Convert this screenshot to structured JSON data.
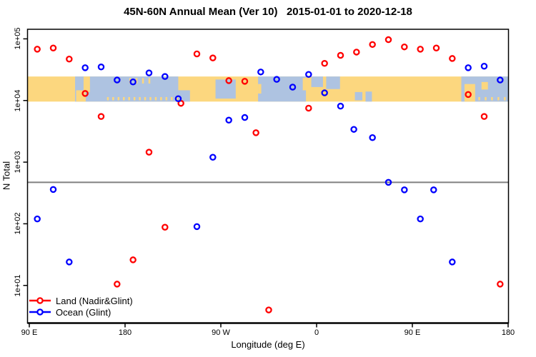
{
  "title": "45N-60N Annual Mean (Ver 10)   2015-01-01 to 2020-12-18",
  "colors": {
    "land_series": "#FF0000",
    "ocean_series": "#0000FF",
    "map_land": "#FCD77F",
    "map_ocean": "#AEC3E1",
    "reference_line": "#808080",
    "axis": "#000000"
  },
  "chart_data": {
    "type": "scatter",
    "title": "45N-60N Annual Mean (Ver 10)   2015-01-01 to 2020-12-18",
    "xlabel": "Longitude (deg E)",
    "ylabel": "N Total",
    "log_y": true,
    "xlim": [
      90,
      540
    ],
    "ylim": [
      2.45,
      143000
    ],
    "x_ticks": [
      {
        "label": "90 E",
        "lon": 90
      },
      {
        "label": "180",
        "lon": 180
      },
      {
        "label": "90 W",
        "lon": 270
      },
      {
        "label": "0",
        "lon": 360
      },
      {
        "label": "90 E",
        "lon": 450
      },
      {
        "label": "180",
        "lon": 540
      }
    ],
    "y_ticks": [
      {
        "label": "1e+05",
        "value": 100000
      },
      {
        "label": "1e+04",
        "value": 10000
      },
      {
        "label": "1e+03",
        "value": 1000
      },
      {
        "label": "1e+02",
        "value": 100
      },
      {
        "label": "1e+01",
        "value": 10
      }
    ],
    "reference_line": {
      "value": 470
    },
    "legend_position": "bottom-left",
    "grid": false,
    "series": [
      {
        "name": "Land (Nadir&Glint)",
        "color": "#FF0000",
        "points": [
          [
            97.5,
            68000
          ],
          [
            112.5,
            71000
          ],
          [
            127.5,
            47000
          ],
          [
            142.5,
            13000
          ],
          [
            157.5,
            5500
          ],
          [
            172.5,
            10.5
          ],
          [
            187.5,
            26
          ],
          [
            202.5,
            1450
          ],
          [
            217.5,
            88
          ],
          [
            232.5,
            9000
          ],
          [
            247.5,
            57000
          ],
          [
            262.5,
            49000
          ],
          [
            277.5,
            21000
          ],
          [
            292.5,
            20500
          ],
          [
            303,
            3000
          ],
          [
            315,
            4
          ],
          [
            352.5,
            7500
          ],
          [
            367.5,
            40000
          ],
          [
            382.5,
            54000
          ],
          [
            397.5,
            61000
          ],
          [
            412.5,
            81000
          ],
          [
            427.5,
            97000
          ],
          [
            442.5,
            74000
          ],
          [
            457.5,
            68000
          ],
          [
            472.5,
            71000
          ],
          [
            487.5,
            48000
          ],
          [
            502.5,
            12500
          ],
          [
            517.5,
            5500
          ],
          [
            532.5,
            10.5
          ]
        ]
      },
      {
        "name": "Ocean (Glint)",
        "color": "#0000FF",
        "points": [
          [
            97.5,
            120
          ],
          [
            112.5,
            360
          ],
          [
            127.5,
            24
          ],
          [
            142.5,
            34000
          ],
          [
            157.5,
            35000
          ],
          [
            172.5,
            21500
          ],
          [
            187.5,
            20000
          ],
          [
            202.5,
            28000
          ],
          [
            217.5,
            24500
          ],
          [
            230,
            10700
          ],
          [
            247.5,
            90
          ],
          [
            262.5,
            1200
          ],
          [
            277.5,
            4800
          ],
          [
            292.5,
            5300
          ],
          [
            307.5,
            29000
          ],
          [
            322.5,
            22000
          ],
          [
            337.5,
            16500
          ],
          [
            352.5,
            26500
          ],
          [
            367.5,
            13300
          ],
          [
            382.5,
            8100
          ],
          [
            395,
            3400
          ],
          [
            412.5,
            2500
          ],
          [
            427.5,
            470
          ],
          [
            442.5,
            355
          ],
          [
            457.5,
            120
          ],
          [
            470,
            355
          ],
          [
            487.5,
            24
          ],
          [
            502.5,
            34000
          ],
          [
            517.5,
            36000
          ],
          [
            532.5,
            21500
          ]
        ]
      }
    ],
    "map_band": {
      "description": "world coastline strip 45N-60N drawn across the plot",
      "value_top": 24500,
      "value_bottom": 9600,
      "land_color": "#FCD77F",
      "ocean_color": "#AEC3E1",
      "segments": [
        {
          "type": "ocean",
          "lon": [
            133,
            230
          ],
          "f": [
            0,
            1
          ]
        },
        {
          "type": "ocean",
          "lon": [
            230,
            241
          ],
          "f": [
            0.55,
            1
          ]
        },
        {
          "type": "ocean",
          "lon": [
            265,
            284
          ],
          "f": [
            0.12,
            0.88
          ]
        },
        {
          "type": "ocean",
          "lon": [
            305,
            350
          ],
          "f": [
            0,
            1
          ]
        },
        {
          "type": "ocean",
          "lon": [
            355,
            366
          ],
          "f": [
            0,
            0.42
          ]
        },
        {
          "type": "ocean",
          "lon": [
            369,
            382
          ],
          "f": [
            0,
            0.5
          ]
        },
        {
          "type": "ocean",
          "lon": [
            396,
            403
          ],
          "f": [
            0.62,
            0.95
          ]
        },
        {
          "type": "ocean",
          "lon": [
            406,
            412
          ],
          "f": [
            0.6,
            1
          ]
        },
        {
          "type": "ocean",
          "lon": [
            496,
            540
          ],
          "f": [
            0,
            1
          ]
        },
        {
          "type": "land",
          "lon": [
            134,
            143
          ],
          "f": [
            0.55,
            1
          ]
        },
        {
          "type": "land",
          "lon": [
            141,
            147
          ],
          "f": [
            0,
            0.62
          ]
        },
        {
          "type": "land",
          "lon": [
            305,
            308
          ],
          "f": [
            0.3,
            0.68
          ]
        },
        {
          "type": "land",
          "lon": [
            347,
            354
          ],
          "f": [
            0.05,
            0.55
          ]
        },
        {
          "type": "land",
          "lon": [
            499,
            509
          ],
          "f": [
            0.3,
            1
          ]
        },
        {
          "type": "land",
          "lon": [
            515,
            521
          ],
          "f": [
            0.22,
            0.52
          ]
        }
      ],
      "speckle_rows": [
        {
          "type": "land",
          "lon_start": 163,
          "lon_end": 229,
          "step": 5,
          "f": [
            0.82,
            0.95
          ]
        },
        {
          "type": "land",
          "lon_start": 184,
          "lon_end": 205,
          "step": 6,
          "f": [
            0.06,
            0.28
          ]
        },
        {
          "type": "land",
          "lon_start": 512,
          "lon_end": 538,
          "step": 6,
          "f": [
            0.82,
            0.95
          ]
        }
      ]
    }
  }
}
